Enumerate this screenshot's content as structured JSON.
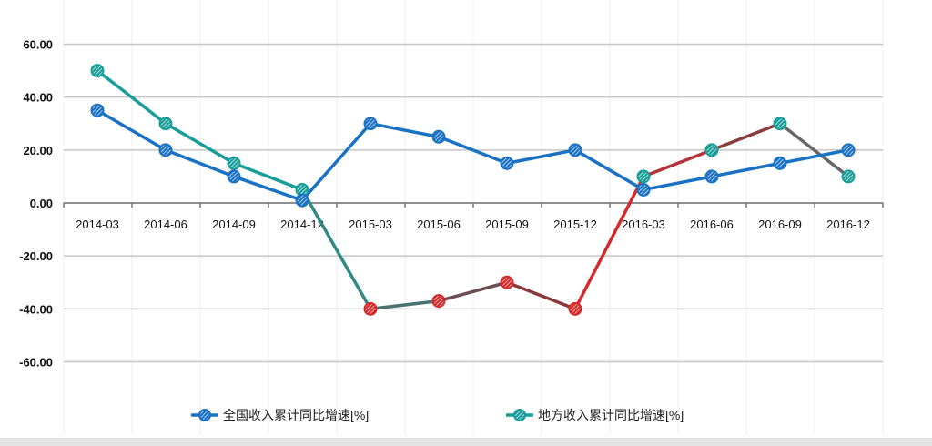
{
  "chart_data": {
    "type": "line",
    "categories": [
      "2014-03",
      "2014-06",
      "2014-09",
      "2014-12",
      "2015-03",
      "2015-06",
      "2015-09",
      "2015-12",
      "2016-03",
      "2016-06",
      "2016-09",
      "2016-12"
    ],
    "yticks": [
      "60.00",
      "40.00",
      "20.00",
      "0.00",
      "-20.00",
      "-40.00",
      "-60.00"
    ],
    "ylim": [
      -60,
      60
    ],
    "grid": true,
    "legend_position": "bottom",
    "series": [
      {
        "name": "全国收入累计同比增速[%]",
        "color": "#1a72c4",
        "values": [
          35,
          20,
          10,
          1,
          30,
          25,
          15,
          20,
          5,
          10,
          15,
          20
        ]
      },
      {
        "name": "地方收入累计同比增速[%]",
        "color": "#1a9e9a",
        "values": [
          50,
          30,
          15,
          5,
          -40,
          -37,
          -30,
          -40,
          10,
          20,
          30,
          10
        ]
      }
    ],
    "segment_colors_series2": [
      "#1a9e9a",
      "#1a9e9a",
      "#1a9e9a",
      "#2f8a86",
      "#4a7273",
      "#6a5055",
      "#8a3a3a",
      "#d42a2a",
      "#b5333a",
      "#8a3d3d",
      "#666666"
    ],
    "marker_colors_series2": [
      "#1a9e9a",
      "#1a9e9a",
      "#1a9e9a",
      "#1a9e9a",
      "#d42a2a",
      "#d42a2a",
      "#d42a2a",
      "#d42a2a",
      "#1a9e9a",
      "#1a9e9a",
      "#1a9e9a",
      "#1a9e9a"
    ]
  }
}
